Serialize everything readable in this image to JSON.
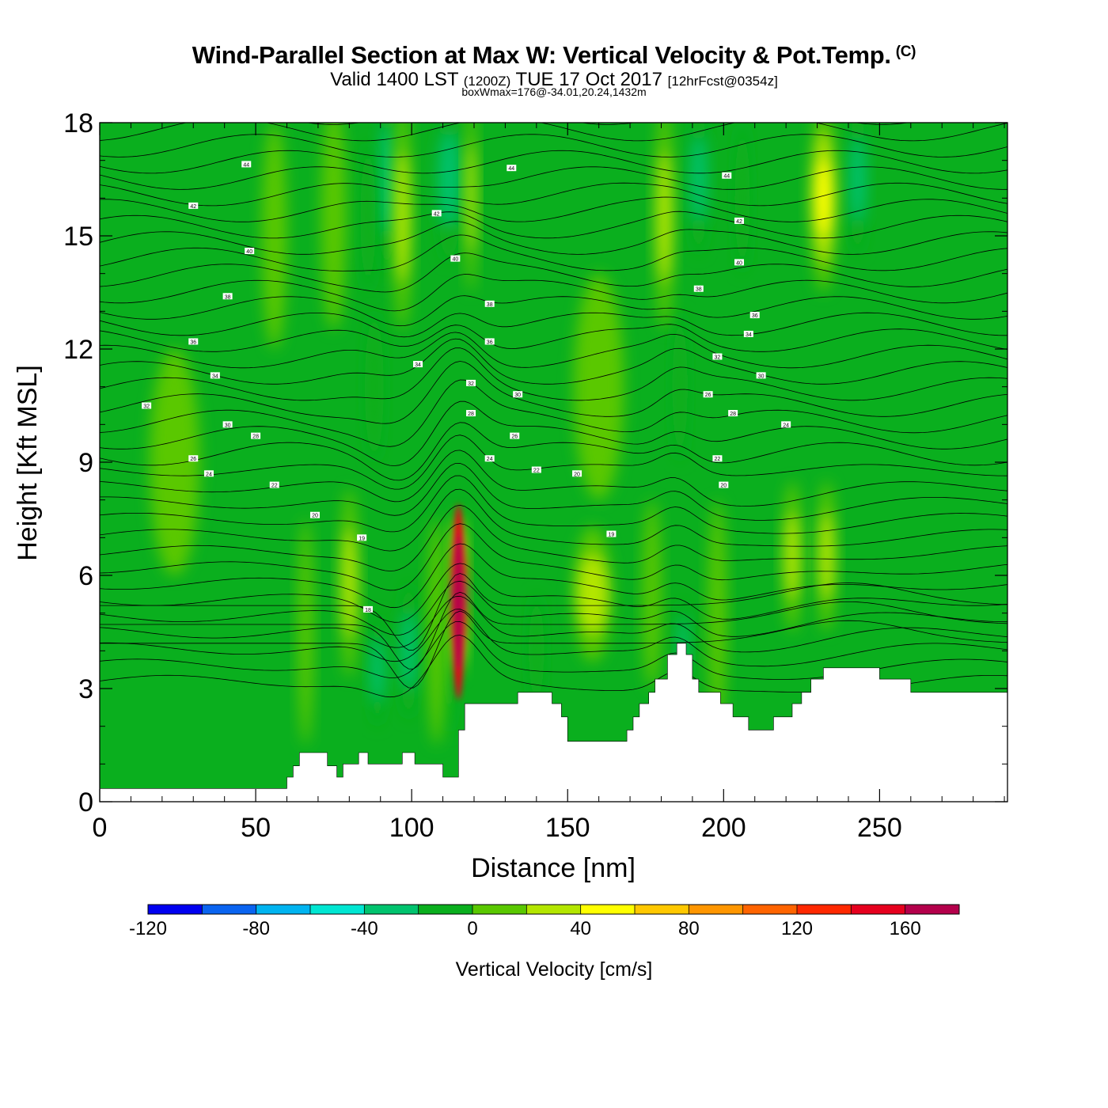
{
  "header": {
    "title": "Wind-Parallel Section at Max W: Vertical Velocity & Pot.Temp.",
    "copyright": "(C)",
    "subtitle_main": "Valid 1400 LST",
    "subtitle_z": "(1200Z)",
    "subtitle_date": "TUE 17 Oct 2017",
    "subtitle_fcst": "[12hrFcst@0354z]",
    "subtitle2": "boxWmax=176@-34.01,20.24,1432m"
  },
  "chart_data": {
    "type": "heatmap",
    "xlabel": "Distance [nm]",
    "ylabel": "Height [Kft MSL]",
    "xlim": [
      0,
      291
    ],
    "ylim": [
      0,
      18
    ],
    "x_ticks": [
      0,
      50,
      100,
      150,
      200,
      250
    ],
    "y_ticks": [
      0,
      3,
      6,
      9,
      12,
      15,
      18
    ],
    "colorbar": {
      "label": "Vertical Velocity [cm/s]",
      "min": -120,
      "max": 180,
      "step": 20,
      "tick_labels": [
        "-120",
        "-80",
        "-40",
        "0",
        "40",
        "80",
        "120",
        "160"
      ],
      "colors": [
        "#0000f0",
        "#0a64f0",
        "#00b4f0",
        "#00e6d2",
        "#00c36e",
        "#0aaf1e",
        "#5ac800",
        "#b4e600",
        "#ffff00",
        "#ffc800",
        "#ff9600",
        "#ff6400",
        "#ff2800",
        "#e6001e",
        "#b4004b"
      ]
    },
    "max_updraft": {
      "x": 115,
      "z": 4.7,
      "value": 176
    },
    "terrain": [
      [
        0,
        0.35
      ],
      [
        60,
        0.35
      ],
      [
        60,
        0.65
      ],
      [
        62,
        0.65
      ],
      [
        62,
        0.95
      ],
      [
        64,
        0.95
      ],
      [
        64,
        1.3
      ],
      [
        73,
        1.3
      ],
      [
        73,
        0.95
      ],
      [
        76,
        0.95
      ],
      [
        76,
        0.65
      ],
      [
        78,
        0.65
      ],
      [
        78,
        1.0
      ],
      [
        83,
        1.0
      ],
      [
        83,
        1.3
      ],
      [
        86,
        1.3
      ],
      [
        86,
        1.0
      ],
      [
        97,
        1.0
      ],
      [
        97,
        1.3
      ],
      [
        101,
        1.3
      ],
      [
        101,
        1.0
      ],
      [
        110,
        1.0
      ],
      [
        110,
        0.65
      ],
      [
        115,
        0.65
      ],
      [
        115,
        1.9
      ],
      [
        117,
        1.9
      ],
      [
        117,
        2.6
      ],
      [
        134,
        2.6
      ],
      [
        134,
        2.9
      ],
      [
        145,
        2.9
      ],
      [
        145,
        2.6
      ],
      [
        148,
        2.6
      ],
      [
        148,
        2.25
      ],
      [
        150,
        2.25
      ],
      [
        150,
        1.6
      ],
      [
        169,
        1.6
      ],
      [
        169,
        1.9
      ],
      [
        171,
        1.9
      ],
      [
        171,
        2.25
      ],
      [
        173,
        2.25
      ],
      [
        173,
        2.6
      ],
      [
        176,
        2.6
      ],
      [
        176,
        2.9
      ],
      [
        178,
        2.9
      ],
      [
        178,
        3.25
      ],
      [
        182,
        3.25
      ],
      [
        182,
        3.9
      ],
      [
        185,
        3.9
      ],
      [
        185,
        4.2
      ],
      [
        188,
        4.2
      ],
      [
        188,
        3.9
      ],
      [
        190,
        3.9
      ],
      [
        190,
        3.25
      ],
      [
        192,
        3.25
      ],
      [
        192,
        2.9
      ],
      [
        199,
        2.9
      ],
      [
        199,
        2.6
      ],
      [
        203,
        2.6
      ],
      [
        203,
        2.25
      ],
      [
        208,
        2.25
      ],
      [
        208,
        1.9
      ],
      [
        216,
        1.9
      ],
      [
        216,
        2.25
      ],
      [
        222,
        2.25
      ],
      [
        222,
        2.6
      ],
      [
        225,
        2.6
      ],
      [
        225,
        2.9
      ],
      [
        228,
        2.9
      ],
      [
        228,
        3.25
      ],
      [
        232,
        3.25
      ],
      [
        232,
        3.55
      ],
      [
        250,
        3.55
      ],
      [
        250,
        3.25
      ],
      [
        260,
        3.25
      ],
      [
        260,
        2.9
      ],
      [
        291,
        2.9
      ]
    ],
    "updraft_columns": [
      {
        "x": 115,
        "w": 2.5,
        "z": 5.5,
        "dz": 2.2,
        "value": 170
      },
      {
        "x": 80,
        "w": 3,
        "z": 5.8,
        "dz": 2.5,
        "value": 35
      },
      {
        "x": 66,
        "w": 2.5,
        "z": 4.5,
        "dz": 3,
        "value": 25
      },
      {
        "x": 108,
        "w": 3,
        "z": 4.5,
        "dz": 3,
        "value": 25
      },
      {
        "x": 158,
        "w": 6,
        "z": 5.5,
        "dz": 1.8,
        "value": 30
      },
      {
        "x": 177,
        "w": 3,
        "z": 5.5,
        "dz": 2.5,
        "value": 25
      },
      {
        "x": 198,
        "w": 3,
        "z": 5,
        "dz": 3,
        "value": 25
      },
      {
        "x": 222,
        "w": 3,
        "z": 6.5,
        "dz": 2,
        "value": 30
      },
      {
        "x": 233,
        "w": 3,
        "z": 6.5,
        "dz": 2,
        "value": 30
      },
      {
        "x": 97,
        "w": 3,
        "z": 15.5,
        "dz": 3,
        "value": 35
      },
      {
        "x": 119,
        "w": 2,
        "z": 16,
        "dz": 2.5,
        "value": 30
      },
      {
        "x": 181,
        "w": 3,
        "z": 15.5,
        "dz": 3,
        "value": 30
      },
      {
        "x": 232,
        "w": 4,
        "z": 16,
        "dz": 2.5,
        "value": 50
      },
      {
        "x": 75,
        "w": 4,
        "z": 15.5,
        "dz": 3,
        "value": 25
      },
      {
        "x": 56,
        "w": 4,
        "z": 15,
        "dz": 3,
        "value": 25
      },
      {
        "x": 24,
        "w": 8,
        "z": 9,
        "dz": 3,
        "value": 22
      },
      {
        "x": 160,
        "w": 8,
        "z": 11,
        "dz": 3,
        "value": 22
      }
    ],
    "downdraft_columns": [
      {
        "x": 99,
        "w": 3,
        "z": 4.0,
        "dz": 1.8,
        "value": -45
      },
      {
        "x": 89,
        "w": 2.5,
        "z": 3.5,
        "dz": 1.5,
        "value": -30
      },
      {
        "x": 112,
        "w": 2,
        "z": 3.8,
        "dz": 2,
        "value": -25
      },
      {
        "x": 187,
        "w": 2,
        "z": 4.2,
        "dz": 1.2,
        "value": -35
      },
      {
        "x": 160,
        "w": 4,
        "z": 5.5,
        "dz": 1.2,
        "value": -25
      },
      {
        "x": 140,
        "w": 2.5,
        "z": 4.0,
        "dz": 1.5,
        "value": -22
      },
      {
        "x": 112,
        "w": 4,
        "z": 16.5,
        "dz": 2.2,
        "value": -45
      },
      {
        "x": 92,
        "w": 3,
        "z": 16.5,
        "dz": 2.5,
        "value": -30
      },
      {
        "x": 86,
        "w": 2.5,
        "z": 15.5,
        "dz": 2,
        "value": -25
      },
      {
        "x": 192,
        "w": 3,
        "z": 16.5,
        "dz": 2,
        "value": -40
      },
      {
        "x": 243,
        "w": 3,
        "z": 16.5,
        "dz": 2,
        "value": -30
      },
      {
        "x": 206,
        "w": 2.5,
        "z": 16,
        "dz": 2,
        "value": -22
      },
      {
        "x": 88,
        "w": 3,
        "z": 11,
        "dz": 2,
        "value": -25
      },
      {
        "x": 186,
        "w": 2.5,
        "z": 11,
        "dz": 2,
        "value": -25
      }
    ],
    "theta_labels": [
      {
        "x": 47,
        "z": 16.9,
        "t": "44"
      },
      {
        "x": 30,
        "z": 15.8,
        "t": "42"
      },
      {
        "x": 48,
        "z": 14.6,
        "t": "40"
      },
      {
        "x": 41,
        "z": 13.4,
        "t": "38"
      },
      {
        "x": 30,
        "z": 12.2,
        "t": "36"
      },
      {
        "x": 37,
        "z": 11.3,
        "t": "34"
      },
      {
        "x": 15,
        "z": 10.5,
        "t": "32"
      },
      {
        "x": 41,
        "z": 10.0,
        "t": "30"
      },
      {
        "x": 50,
        "z": 9.7,
        "t": "28"
      },
      {
        "x": 30,
        "z": 9.1,
        "t": "26"
      },
      {
        "x": 35,
        "z": 8.7,
        "t": "24"
      },
      {
        "x": 56,
        "z": 8.4,
        "t": "22"
      },
      {
        "x": 69,
        "z": 7.6,
        "t": "20"
      },
      {
        "x": 84,
        "z": 7.0,
        "t": "19"
      },
      {
        "x": 86,
        "z": 5.1,
        "t": "18"
      },
      {
        "x": 132,
        "z": 16.8,
        "t": "44"
      },
      {
        "x": 108,
        "z": 15.6,
        "t": "42"
      },
      {
        "x": 114,
        "z": 14.4,
        "t": "40"
      },
      {
        "x": 125,
        "z": 13.2,
        "t": "38"
      },
      {
        "x": 125,
        "z": 12.2,
        "t": "36"
      },
      {
        "x": 102,
        "z": 11.6,
        "t": "34"
      },
      {
        "x": 119,
        "z": 11.1,
        "t": "32"
      },
      {
        "x": 134,
        "z": 10.8,
        "t": "30"
      },
      {
        "x": 119,
        "z": 10.3,
        "t": "28"
      },
      {
        "x": 133,
        "z": 9.7,
        "t": "26"
      },
      {
        "x": 125,
        "z": 9.1,
        "t": "24"
      },
      {
        "x": 140,
        "z": 8.8,
        "t": "22"
      },
      {
        "x": 153,
        "z": 8.7,
        "t": "20"
      },
      {
        "x": 164,
        "z": 7.1,
        "t": "19"
      },
      {
        "x": 201,
        "z": 16.6,
        "t": "44"
      },
      {
        "x": 205,
        "z": 15.4,
        "t": "42"
      },
      {
        "x": 205,
        "z": 14.3,
        "t": "40"
      },
      {
        "x": 192,
        "z": 13.6,
        "t": "38"
      },
      {
        "x": 210,
        "z": 12.9,
        "t": "36"
      },
      {
        "x": 208,
        "z": 12.4,
        "t": "34"
      },
      {
        "x": 198,
        "z": 11.8,
        "t": "32"
      },
      {
        "x": 212,
        "z": 11.3,
        "t": "30"
      },
      {
        "x": 195,
        "z": 10.8,
        "t": "26"
      },
      {
        "x": 203,
        "z": 10.3,
        "t": "28"
      },
      {
        "x": 220,
        "z": 10.0,
        "t": "24"
      },
      {
        "x": 198,
        "z": 9.1,
        "t": "22"
      },
      {
        "x": 200,
        "z": 8.4,
        "t": "20"
      }
    ],
    "grid": false
  }
}
